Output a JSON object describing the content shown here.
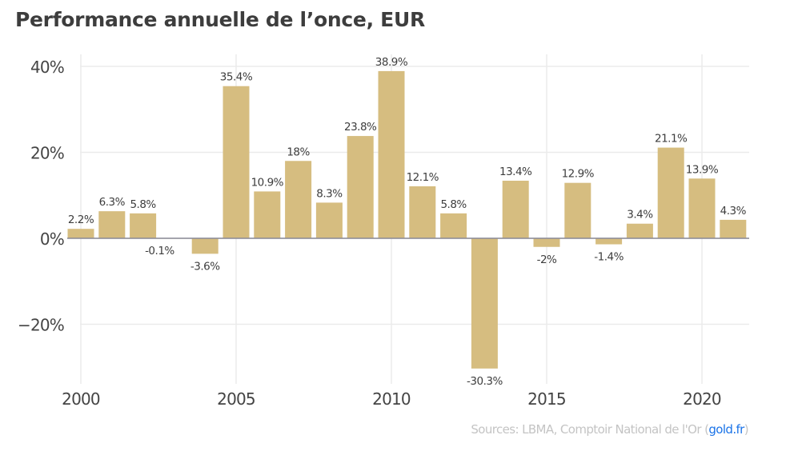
{
  "chart_data": {
    "type": "bar",
    "title": "Performance annuelle de l’once, EUR",
    "xlabel": "",
    "ylabel": "",
    "x": [
      2000,
      2001,
      2002,
      2003,
      2004,
      2005,
      2006,
      2007,
      2008,
      2009,
      2010,
      2011,
      2012,
      2013,
      2014,
      2015,
      2016,
      2017,
      2018,
      2019,
      2020,
      2021
    ],
    "values": [
      2.2,
      6.3,
      5.8,
      -0.1,
      -3.6,
      35.4,
      10.9,
      18,
      8.3,
      23.8,
      38.9,
      12.1,
      5.8,
      -30.3,
      13.4,
      -2,
      12.9,
      -1.4,
      3.4,
      21.1,
      13.9,
      4.3
    ],
    "data_labels": [
      "2.2%",
      "6.3%",
      "5.8%",
      "-0.1%",
      "-3.6%",
      "35.4%",
      "10.9%",
      "18%",
      "8.3%",
      "23.8%",
      "38.9%",
      "12.1%",
      "5.8%",
      "-30.3%",
      "13.4%",
      "-2%",
      "12.9%",
      "-1.4%",
      "3.4%",
      "21.1%",
      "13.9%",
      "4.3%"
    ],
    "yticks": [
      40,
      20,
      0,
      -20
    ],
    "ytick_labels": [
      "40%",
      "20%",
      "0%",
      "−20%"
    ],
    "xticks": [
      2000,
      2005,
      2010,
      2015,
      2020
    ],
    "xtick_labels": [
      "2000",
      "2005",
      "2010",
      "2015",
      "2020"
    ],
    "xlim": [
      1999.5,
      2021.5
    ],
    "ylim": [
      -34,
      42
    ],
    "grid": true,
    "legend": "none",
    "bar_color": "#d6bd80"
  },
  "source": {
    "prefix": "Sources: LBMA, Comptoir National de l'Or (",
    "link": "gold.fr",
    "suffix": ")",
    "link_color": "#1a73e8"
  }
}
